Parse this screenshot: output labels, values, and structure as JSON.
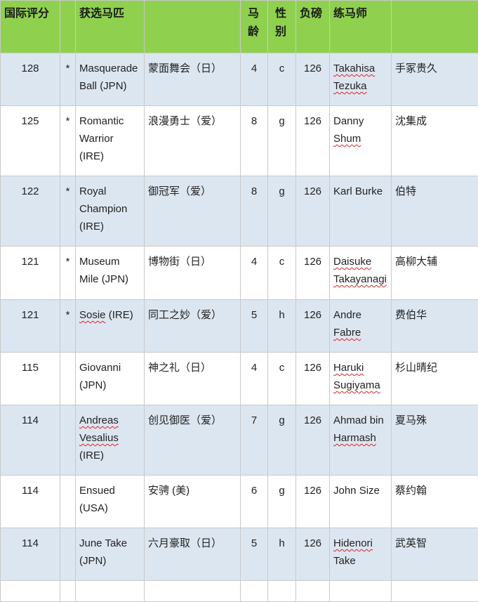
{
  "headers": [
    "国际评分",
    "",
    "获选马匹",
    "",
    "马龄",
    "性别",
    "负磅",
    "练马师",
    ""
  ],
  "header_color": "#8fd14f",
  "row_color": "#dce6f1",
  "rows": [
    {
      "rating": "128",
      "mark": "*",
      "name": "Masquerade Ball (JPN)",
      "cn": "蒙面舞会（日）",
      "age": "4",
      "sex": "c",
      "weight": "126",
      "trainer": "Takahisa Tezuka",
      "trainer_cn": "手冢贵久",
      "spell": [
        "Takahisa",
        "Tezuka"
      ]
    },
    {
      "rating": "125",
      "mark": "*",
      "name": "Romantic Warrior (IRE)",
      "cn": "浪漫勇士（爱）",
      "age": "8",
      "sex": "g",
      "weight": "126",
      "trainer": "Danny Shum",
      "trainer_cn": "沈集成",
      "spell": [
        "Shum"
      ]
    },
    {
      "rating": "122",
      "mark": "*",
      "name": "Royal Champion (IRE)",
      "cn": "御冠军（爱）",
      "age": "8",
      "sex": "g",
      "weight": "126",
      "trainer": "Karl Burke",
      "trainer_cn": "伯特",
      "spell": []
    },
    {
      "rating": "121",
      "mark": "*",
      "name": "Museum Mile (JPN)",
      "cn": "博物街（日）",
      "age": "4",
      "sex": "c",
      "weight": "126",
      "trainer": "Daisuke Takayanagi",
      "trainer_cn": "高柳大辅",
      "spell": [
        "Daisuke",
        "Takayanagi"
      ]
    },
    {
      "rating": "121",
      "mark": "*",
      "name": "Sosie (IRE)",
      "cn": "同工之妙（爱）",
      "age": "5",
      "sex": "h",
      "weight": "126",
      "trainer": "Andre Fabre",
      "trainer_cn": "费伯华",
      "spell": [
        "Sosie",
        "Fabre"
      ]
    },
    {
      "rating": "115",
      "mark": "",
      "name": "Giovanni (JPN)",
      "cn": "神之礼（日）",
      "age": "4",
      "sex": "c",
      "weight": "126",
      "trainer": "Haruki Sugiyama",
      "trainer_cn": "杉山晴纪",
      "spell": [
        "Haruki",
        "Sugiyama"
      ]
    },
    {
      "rating": "114",
      "mark": "",
      "name": "Andreas Vesalius (IRE)",
      "cn": "创见御医（爱）",
      "age": "7",
      "sex": "g",
      "weight": "126",
      "trainer": "Ahmad bin Harmash",
      "trainer_cn": "夏马殊",
      "spell": [
        "Andreas",
        "Vesalius",
        "Harmash"
      ]
    },
    {
      "rating": "114",
      "mark": "",
      "name": "Ensued (USA)",
      "cn": "安骋 (美)",
      "age": "6",
      "sex": "g",
      "weight": "126",
      "trainer": "John Size",
      "trainer_cn": "蔡约翰",
      "spell": []
    },
    {
      "rating": "114",
      "mark": "",
      "name": "June Take (JPN)",
      "cn": "六月豪取（日）",
      "age": "5",
      "sex": "h",
      "weight": "126",
      "trainer": "Hidenori Take",
      "trainer_cn": "武英智",
      "spell": [
        "Hidenori"
      ]
    }
  ]
}
